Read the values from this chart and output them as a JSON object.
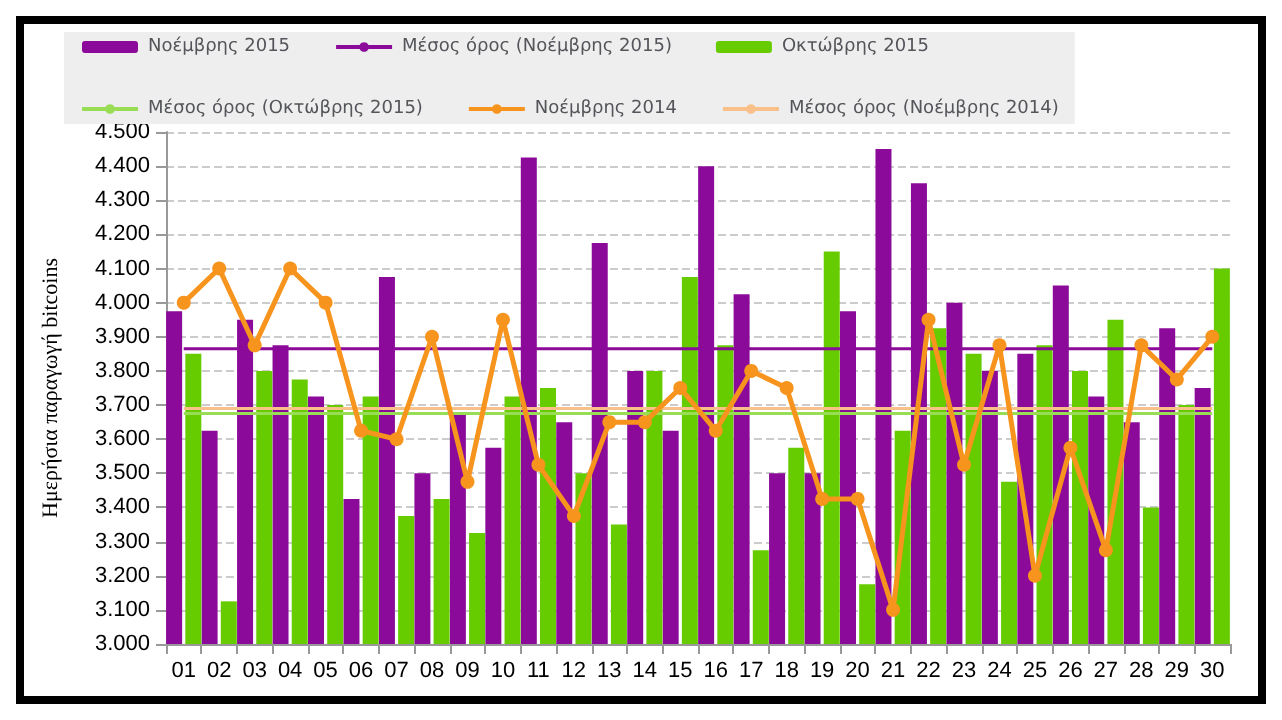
{
  "chart_data": {
    "type": "bar",
    "ylabel": "Ημερήσια παραγωγή bitcoins",
    "categories": [
      "01",
      "02",
      "03",
      "04",
      "05",
      "06",
      "07",
      "08",
      "09",
      "10",
      "11",
      "12",
      "13",
      "14",
      "15",
      "16",
      "17",
      "18",
      "19",
      "20",
      "21",
      "22",
      "23",
      "24",
      "25",
      "26",
      "27",
      "28",
      "29",
      "30"
    ],
    "series": [
      {
        "name": "Νοέμβρης 2015",
        "color": "#8b0a99",
        "values": [
          3975,
          3625,
          3950,
          3875,
          3725,
          3425,
          4075,
          3500,
          3675,
          3575,
          4425,
          3650,
          4175,
          3800,
          3625,
          4400,
          4025,
          3500,
          3500,
          3975,
          4450,
          4350,
          4000,
          3800,
          3850,
          4050,
          3725,
          3650,
          3925,
          3750
        ]
      },
      {
        "name": "Μέσος όρος (Νοέμβρης 2015)",
        "type": "line",
        "marker": "none",
        "color": "#8b0a99",
        "values": [
          3865,
          3865,
          3865,
          3865,
          3865,
          3865,
          3865,
          3865,
          3865,
          3865,
          3865,
          3865,
          3865,
          3865,
          3865,
          3865,
          3865,
          3865,
          3865,
          3865,
          3865,
          3865,
          3865,
          3865,
          3865,
          3865,
          3865,
          3865,
          3865,
          3865
        ]
      },
      {
        "name": "Οκτώβρης 2015",
        "color": "#66cc00",
        "values": [
          3850,
          3125,
          3800,
          3775,
          3700,
          3725,
          3375,
          3425,
          3325,
          3725,
          3750,
          3500,
          3350,
          3800,
          4075,
          3875,
          3275,
          3575,
          4150,
          3175,
          3625,
          3925,
          3850,
          3475,
          3875,
          3800,
          3950,
          3400,
          3700,
          4100
        ]
      },
      {
        "name": "Μέσος όρος (Οκτώβρης 2015)",
        "type": "line",
        "marker": "none",
        "color": "#99dd55",
        "values": [
          3675,
          3675,
          3675,
          3675,
          3675,
          3675,
          3675,
          3675,
          3675,
          3675,
          3675,
          3675,
          3675,
          3675,
          3675,
          3675,
          3675,
          3675,
          3675,
          3675,
          3675,
          3675,
          3675,
          3675,
          3675,
          3675,
          3675,
          3675,
          3675,
          3675
        ]
      },
      {
        "name": "Νοέμβρης 2014",
        "type": "line",
        "marker": "circle",
        "color": "#f7941d",
        "values": [
          4000,
          4100,
          3875,
          4100,
          4000,
          3625,
          3600,
          3900,
          3475,
          3950,
          3525,
          3375,
          3650,
          3650,
          3750,
          3625,
          3800,
          3750,
          3425,
          3425,
          3100,
          3950,
          3525,
          3875,
          3200,
          3575,
          3275,
          3875,
          3775,
          3900
        ]
      },
      {
        "name": "Μέσος όρος (Νοέμβρης 2014)",
        "type": "line",
        "marker": "none",
        "color": "#f9c08a",
        "values": [
          3690,
          3690,
          3690,
          3690,
          3690,
          3690,
          3690,
          3690,
          3690,
          3690,
          3690,
          3690,
          3690,
          3690,
          3690,
          3690,
          3690,
          3690,
          3690,
          3690,
          3690,
          3690,
          3690,
          3690,
          3690,
          3690,
          3690,
          3690,
          3690,
          3690
        ]
      }
    ],
    "ylim": [
      3000,
      4500
    ],
    "yticks": [
      {
        "value": 3000,
        "label": "3.000"
      },
      {
        "value": 3100,
        "label": "3.100"
      },
      {
        "value": 3200,
        "label": "3.200"
      },
      {
        "value": 3300,
        "label": "3.300"
      },
      {
        "value": 3400,
        "label": "3.400"
      },
      {
        "value": 3500,
        "label": "3.500"
      },
      {
        "value": 3600,
        "label": "3.600"
      },
      {
        "value": 3700,
        "label": "3.700"
      },
      {
        "value": 3800,
        "label": "3.800"
      },
      {
        "value": 3900,
        "label": "3.900"
      },
      {
        "value": 4000,
        "label": "4.000"
      },
      {
        "value": 4100,
        "label": "4.100"
      },
      {
        "value": 4200,
        "label": "4.200"
      },
      {
        "value": 4300,
        "label": "4.300"
      },
      {
        "value": 4400,
        "label": "4.400"
      },
      {
        "value": 4500,
        "label": "4.500"
      }
    ],
    "grid": "y",
    "legend": "top",
    "line_style": "solid"
  }
}
